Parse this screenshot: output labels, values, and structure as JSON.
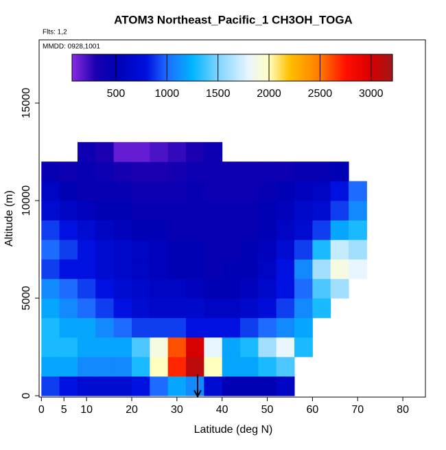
{
  "chart_data": {
    "type": "heatmap",
    "title": "ATOM3 Northeast_Pacific_1 CH3OH_TOGA",
    "annotations": [
      "Flts: 1,2",
      "MMDD: 0928,1001"
    ],
    "xlabel": "Latitude (deg N)",
    "ylabel": "Altitude (m)",
    "xlim": [
      -0.5,
      85
    ],
    "ylim": [
      -70,
      18240
    ],
    "xticks": [
      0,
      5,
      10,
      20,
      30,
      40,
      50,
      60,
      70,
      80
    ],
    "yticks": [
      0,
      5000,
      10000,
      15000
    ],
    "x_bins": [
      0,
      4,
      8,
      12,
      16,
      20,
      24,
      28,
      32,
      36,
      40,
      44,
      48,
      52,
      56,
      60,
      64,
      68,
      72
    ],
    "y_bins": [
      0,
      1000,
      2000,
      3000,
      4000,
      5000,
      6000,
      7000,
      8000,
      9000,
      10000,
      11000,
      12000,
      13000
    ],
    "values": [
      [
        900,
        800,
        700,
        700,
        700,
        800,
        1000,
        1200,
        1100,
        700,
        500,
        500,
        500,
        600,
        null,
        null,
        null,
        null
      ],
      [
        1200,
        1200,
        1100,
        1100,
        1100,
        1300,
        2000,
        2700,
        3100,
        2000,
        1200,
        1200,
        1300,
        1400,
        null,
        null,
        null,
        null
      ],
      [
        1300,
        1300,
        1200,
        1200,
        1200,
        1400,
        1900,
        2600,
        3000,
        1800,
        1200,
        1300,
        1600,
        1800,
        1300,
        null,
        null,
        null
      ],
      [
        1300,
        1200,
        1200,
        1100,
        1000,
        900,
        900,
        900,
        800,
        800,
        800,
        900,
        1000,
        1100,
        1200,
        null,
        null,
        null
      ],
      [
        1200,
        1100,
        1000,
        900,
        800,
        700,
        650,
        650,
        650,
        600,
        600,
        650,
        750,
        900,
        1100,
        1300,
        null,
        null
      ],
      [
        1100,
        1000,
        900,
        800,
        700,
        650,
        600,
        600,
        550,
        500,
        500,
        550,
        650,
        800,
        1000,
        1400,
        1600,
        null
      ],
      [
        900,
        800,
        800,
        700,
        650,
        600,
        550,
        500,
        500,
        450,
        500,
        500,
        600,
        800,
        1100,
        1600,
        1900,
        1800
      ],
      [
        1000,
        900,
        800,
        700,
        650,
        600,
        550,
        500,
        500,
        450,
        450,
        500,
        550,
        700,
        900,
        1300,
        1700,
        1600
      ],
      [
        900,
        800,
        700,
        600,
        550,
        500,
        500,
        450,
        450,
        450,
        450,
        450,
        500,
        600,
        700,
        900,
        1200,
        1300
      ],
      [
        700,
        600,
        550,
        500,
        500,
        450,
        450,
        450,
        450,
        450,
        450,
        450,
        500,
        550,
        650,
        700,
        900,
        1100
      ],
      [
        600,
        500,
        450,
        450,
        450,
        400,
        400,
        400,
        450,
        400,
        400,
        400,
        450,
        500,
        550,
        600,
        800,
        1000
      ],
      [
        450,
        400,
        450,
        400,
        350,
        300,
        300,
        350,
        400,
        400,
        400,
        400,
        400,
        400,
        450,
        450,
        500,
        null
      ],
      [
        null,
        null,
        400,
        300,
        150,
        150,
        200,
        250,
        300,
        400,
        null,
        null,
        null,
        null,
        null,
        null,
        null,
        null
      ]
    ],
    "colorbar": {
      "lim": [
        70,
        3210
      ],
      "ticks": [
        500,
        1000,
        1500,
        2000,
        2500,
        3000
      ],
      "stops": [
        [
          70,
          "#8a2be2"
        ],
        [
          300,
          "#1a00b0"
        ],
        [
          500,
          "#0000b4"
        ],
        [
          800,
          "#0010e0"
        ],
        [
          1000,
          "#1e6cff"
        ],
        [
          1250,
          "#00b4ff"
        ],
        [
          1500,
          "#7fd4ff"
        ],
        [
          1800,
          "#e8f6ff"
        ],
        [
          2000,
          "#ffffc0"
        ],
        [
          2200,
          "#ffc000"
        ],
        [
          2500,
          "#ff7a00"
        ],
        [
          2750,
          "#ff1000"
        ],
        [
          3000,
          "#d80000"
        ],
        [
          3210,
          "#a01818"
        ]
      ]
    }
  }
}
